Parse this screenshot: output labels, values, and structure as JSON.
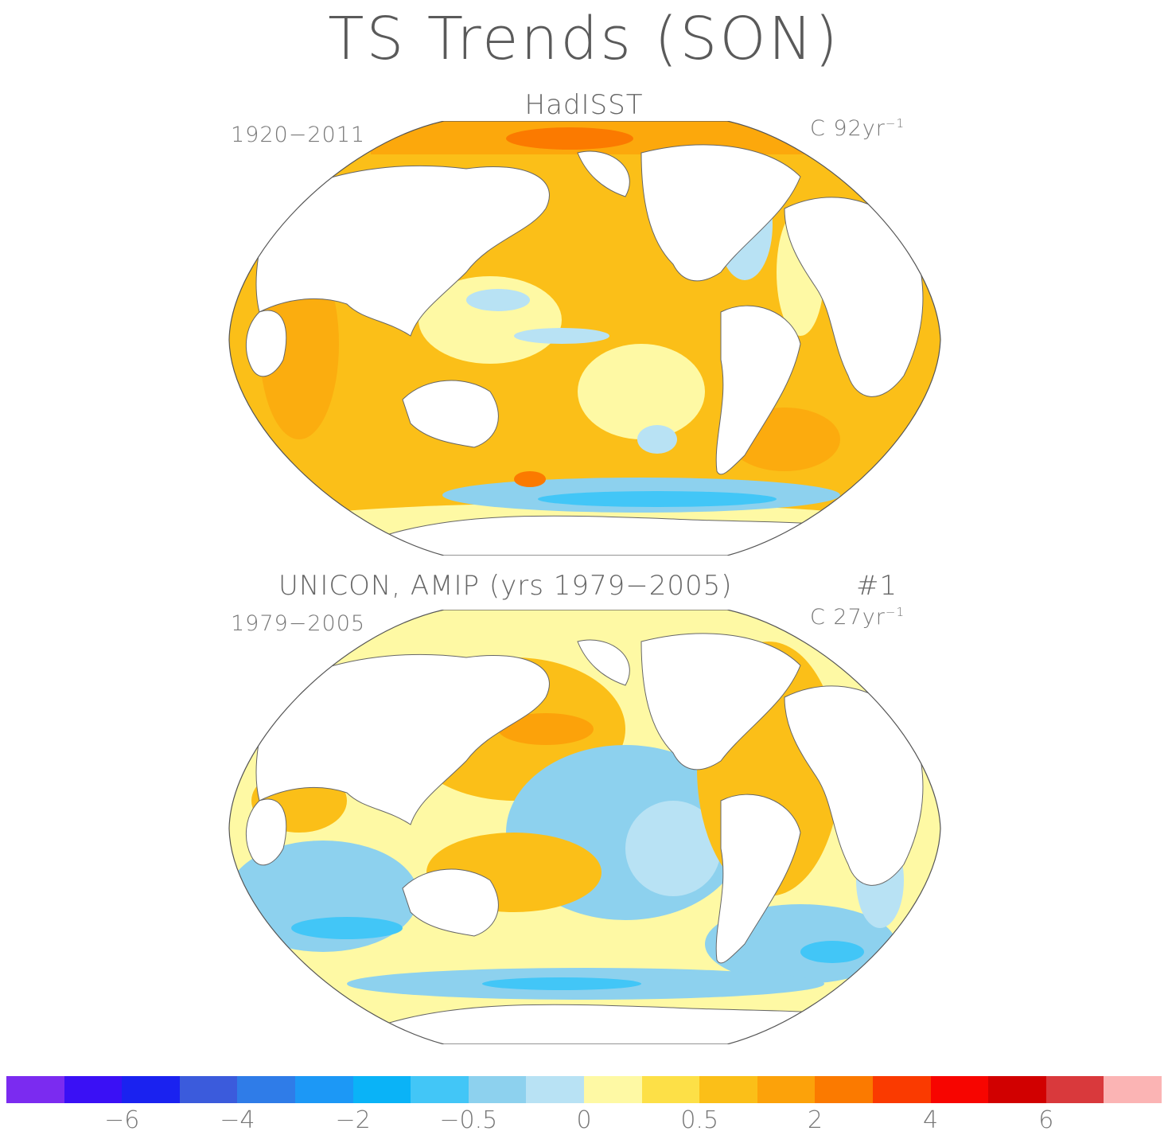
{
  "title": "TS Trends (SON)",
  "panels": [
    {
      "title": "HadISST",
      "period": "1920−2011",
      "units_prefix": "C 92yr",
      "units_exp": "−1"
    },
    {
      "title": "UNICON, AMIP (yrs 1979−2005)",
      "run": "#1",
      "period": "1979−2005",
      "units_prefix": "C 27yr",
      "units_exp": "−1"
    }
  ],
  "colorbar": {
    "colors": [
      "#7b2bf0",
      "#3a10f5",
      "#1a22f0",
      "#3b5bdc",
      "#2f7ce8",
      "#1c98f6",
      "#0ab3f7",
      "#42c6f7",
      "#8dd1ee",
      "#b8e2f4",
      "#fef9a4",
      "#fde047",
      "#fbbf18",
      "#fca20a",
      "#fb7a00",
      "#fa3a00",
      "#f70500",
      "#d10000",
      "#d9393c",
      "#fbb4b4"
    ],
    "tick_labels": [
      "−6",
      "−4",
      "−2",
      "−0.5",
      "0",
      "0.5",
      "2",
      "4",
      "6"
    ]
  },
  "icons": [
    "land-mass-icon"
  ]
}
